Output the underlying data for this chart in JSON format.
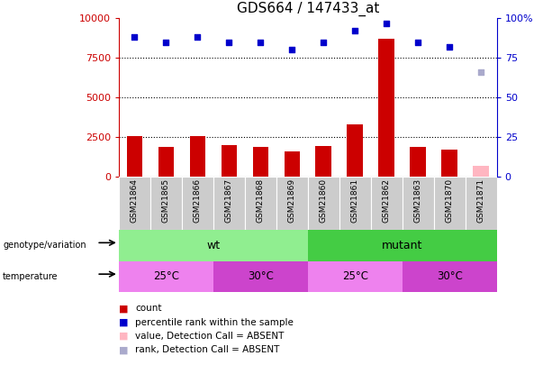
{
  "title": "GDS664 / 147433_at",
  "samples": [
    "GSM21864",
    "GSM21865",
    "GSM21866",
    "GSM21867",
    "GSM21868",
    "GSM21869",
    "GSM21860",
    "GSM21861",
    "GSM21862",
    "GSM21863",
    "GSM21870",
    "GSM21871"
  ],
  "bar_values": [
    2600,
    1900,
    2600,
    2000,
    1900,
    1600,
    1950,
    3300,
    8700,
    1900,
    1700,
    700
  ],
  "bar_colors": [
    "#cc0000",
    "#cc0000",
    "#cc0000",
    "#cc0000",
    "#cc0000",
    "#cc0000",
    "#cc0000",
    "#cc0000",
    "#cc0000",
    "#cc0000",
    "#cc0000",
    "#ffb6c1"
  ],
  "scatter_values": [
    88,
    85,
    88,
    85,
    85,
    80,
    85,
    92,
    97,
    85,
    82,
    66
  ],
  "scatter_colors": [
    "#0000cc",
    "#0000cc",
    "#0000cc",
    "#0000cc",
    "#0000cc",
    "#0000cc",
    "#0000cc",
    "#0000cc",
    "#0000cc",
    "#0000cc",
    "#0000cc",
    "#aaaacc"
  ],
  "ylim_left": [
    0,
    10000
  ],
  "ylim_right": [
    0,
    100
  ],
  "yticks_left": [
    0,
    2500,
    5000,
    7500,
    10000
  ],
  "yticks_right": [
    0,
    25,
    50,
    75,
    100
  ],
  "ytick_right_labels": [
    "0",
    "25",
    "50",
    "75",
    "100%"
  ],
  "grid_values": [
    2500,
    5000,
    7500
  ],
  "color_light_green": "#90ee90",
  "color_green": "#44cc44",
  "color_light_purple": "#ee82ee",
  "color_purple": "#cc44cc",
  "color_gray_bar": "#cccccc",
  "left_axis_color": "#cc0000",
  "right_axis_color": "#0000cc",
  "wt_count": 6,
  "temp_groups": [
    3,
    3,
    3,
    3
  ],
  "temp_labels": [
    "25°C",
    "30°C",
    "25°C",
    "30°C"
  ],
  "temp_colors": [
    "#ee82ee",
    "#cc44cc",
    "#ee82ee",
    "#cc44cc"
  ],
  "legend_items": [
    {
      "label": "count",
      "color": "#cc0000"
    },
    {
      "label": "percentile rank within the sample",
      "color": "#0000cc"
    },
    {
      "label": "value, Detection Call = ABSENT",
      "color": "#ffb6c1"
    },
    {
      "label": "rank, Detection Call = ABSENT",
      "color": "#aaaacc"
    }
  ]
}
